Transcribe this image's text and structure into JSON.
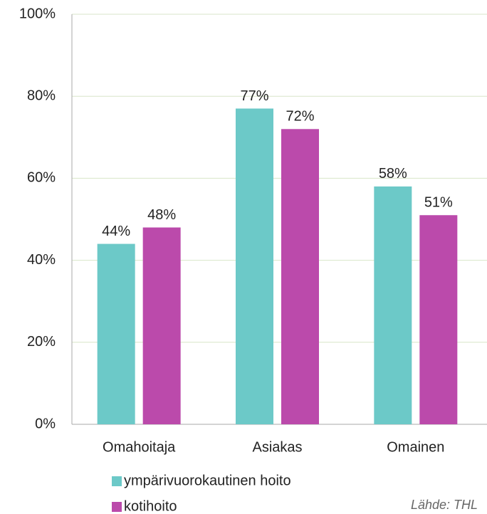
{
  "chart_data": {
    "type": "bar",
    "categories": [
      "Omahoitaja",
      "Asiakas",
      "Omainen"
    ],
    "series": [
      {
        "name": "ympärivuorokautinen hoito",
        "color": "#6cc9c8",
        "values": [
          44,
          77,
          58
        ],
        "value_labels": [
          "44%",
          "77%",
          "58%"
        ]
      },
      {
        "name": "kotihoito",
        "color": "#bb4aab",
        "values": [
          48,
          72,
          51
        ],
        "value_labels": [
          "48%",
          "72%",
          "51%"
        ]
      }
    ],
    "ylim": [
      0,
      100
    ],
    "yticks": [
      {
        "value": 0,
        "label": "0%"
      },
      {
        "value": 20,
        "label": "20%"
      },
      {
        "value": 40,
        "label": "40%"
      },
      {
        "value": 60,
        "label": "60%"
      },
      {
        "value": 80,
        "label": "80%"
      },
      {
        "value": 100,
        "label": "100%"
      }
    ],
    "grid": true,
    "legend": "bottom",
    "source": "Lähde: THL"
  }
}
